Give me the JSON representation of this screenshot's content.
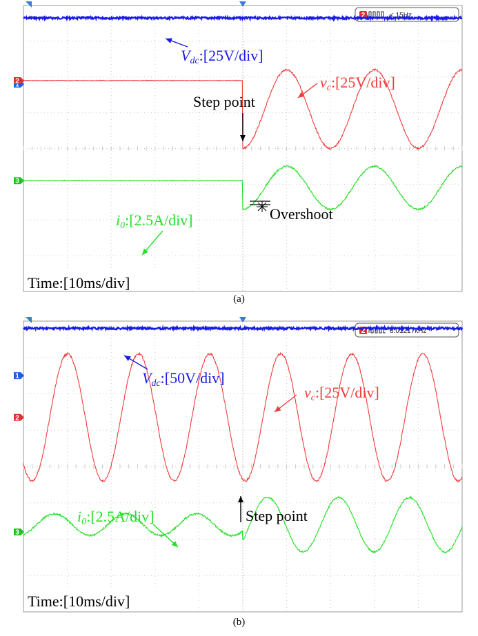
{
  "chart_data": [
    {
      "type": "line",
      "panel_label": "(a)",
      "time_label": "Time:[10ms/div]",
      "trigger_readout": "< 15Hz",
      "trigger_channel": "2",
      "channel_markers": [
        "1",
        "2",
        "3"
      ],
      "x_divisions": 10,
      "y_divisions": 8,
      "step_division": 5.0,
      "series": [
        {
          "channel": "1",
          "label_main": "V",
          "label_sub": "dc",
          "label_scale": ":[25V/div]",
          "color": "#1a1ae6",
          "kind": "dc",
          "level_div": 0.35
        },
        {
          "channel": "2",
          "label_main": "v",
          "label_sub": "c",
          "label_scale": ":[25V/div]",
          "color": "#f03a3a",
          "kind": "sine_step",
          "before_level_div": 2.1,
          "center_div": 2.9,
          "amplitude_div": 1.1,
          "period_div": 2.0,
          "start_phase": "trough"
        },
        {
          "channel": "3",
          "label_main": "i",
          "label_sub": "0",
          "label_scale": ":[2.5A/div]",
          "color": "#22e022",
          "kind": "sine_step",
          "before_level_div": 4.9,
          "center_div": 5.1,
          "amplitude_div": 0.6,
          "period_div": 2.0,
          "start_phase": "trough"
        }
      ],
      "annotations": [
        {
          "text": "Step point",
          "type": "step"
        },
        {
          "text": "Overshoot",
          "type": "overshoot"
        }
      ]
    },
    {
      "type": "line",
      "panel_label": "(b)",
      "time_label": "Time:[10ms/div]",
      "trigger_readout": "8.01217kHz",
      "trigger_channel": "2",
      "channel_markers": [
        "1",
        "2",
        "3"
      ],
      "x_divisions": 10,
      "y_divisions": 8,
      "step_division": 5.0,
      "series": [
        {
          "channel": "1",
          "label_main": "V",
          "label_sub": "dc",
          "label_scale": ":[50V/div]",
          "color": "#1a1ae6",
          "kind": "dc",
          "level_div": 0.2
        },
        {
          "channel": "2",
          "label_main": "v",
          "label_sub": "c",
          "label_scale": ":[25V/div]",
          "color": "#f03a3a",
          "kind": "sine_cont",
          "center_div": 2.65,
          "amplitude_div": 1.75,
          "period_div": 1.62
        },
        {
          "channel": "3",
          "label_main": "i",
          "label_sub": "0",
          "label_scale": ":[2.5A/div]",
          "color": "#22e022",
          "kind": "sine_two",
          "center_div": 5.6,
          "amplitude_before_div": 0.3,
          "amplitude_after_div": 0.75,
          "period_div": 1.62
        }
      ],
      "annotations": [
        {
          "text": "Step point",
          "type": "step"
        }
      ]
    }
  ]
}
